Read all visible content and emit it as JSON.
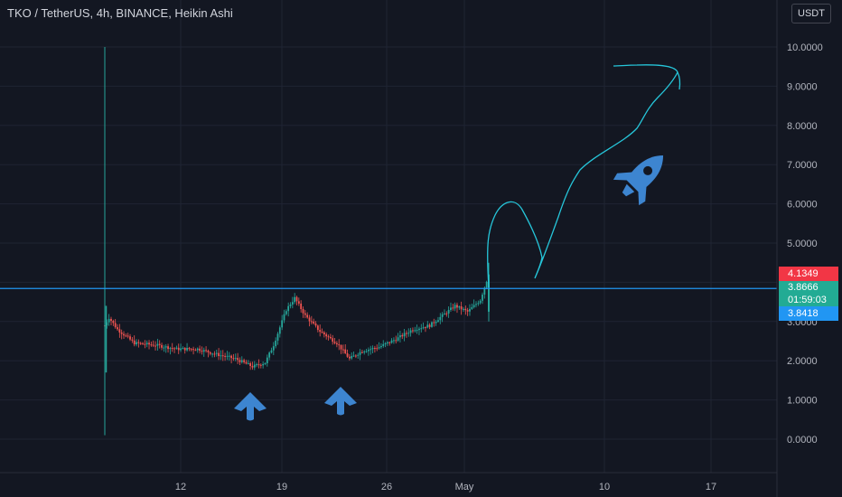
{
  "header": {
    "title": "TKO / TetherUS, 4h, BINANCE, Heikin Ashi",
    "currency": "USDT"
  },
  "price_labels": {
    "high": "4.1349",
    "last": "3.8666",
    "countdown": "01:59:03",
    "line": "3.8418"
  },
  "colors": {
    "background": "#131722",
    "up": "#26a69a",
    "down": "#ef5350",
    "hline": "#2196f3",
    "drawing": "#26c6da",
    "arrow": "#3d85d0",
    "rocket": "#3d85d0"
  },
  "annotations": [
    "up-arrow",
    "up-arrow",
    "rocket-icon",
    "projection-curve"
  ],
  "chart_data": {
    "type": "candlestick",
    "title": "TKO / TetherUS, 4h, BINANCE, Heikin Ashi",
    "ylim": [
      -0.5,
      11.5
    ],
    "ytick_values": [
      0,
      1,
      2,
      3,
      4,
      5,
      6,
      7,
      8,
      9,
      10
    ],
    "ytick_labels": [
      "0.0000",
      "1.0000",
      "2.0000",
      "3.0000",
      "4.0000",
      "5.0000",
      "6.0000",
      "7.0000",
      "8.0000",
      "9.0000",
      "10.0000"
    ],
    "xtick_labels": [
      "12",
      "19",
      "26",
      "May",
      "10",
      "17"
    ],
    "horizontal_line": 3.8418,
    "series_anchors": [
      [
        0,
        2.9
      ],
      [
        2,
        3.1
      ],
      [
        6,
        2.8
      ],
      [
        14,
        2.45
      ],
      [
        24,
        2.4
      ],
      [
        34,
        2.3
      ],
      [
        44,
        2.3
      ],
      [
        54,
        2.15
      ],
      [
        62,
        2.05
      ],
      [
        70,
        1.85
      ],
      [
        76,
        1.95
      ],
      [
        80,
        2.4
      ],
      [
        86,
        3.3
      ],
      [
        90,
        3.6
      ],
      [
        95,
        3.15
      ],
      [
        102,
        2.75
      ],
      [
        110,
        2.45
      ],
      [
        116,
        2.05
      ],
      [
        122,
        2.25
      ],
      [
        130,
        2.35
      ],
      [
        138,
        2.55
      ],
      [
        146,
        2.8
      ],
      [
        154,
        2.9
      ],
      [
        160,
        3.15
      ],
      [
        166,
        3.4
      ],
      [
        172,
        3.25
      ],
      [
        178,
        3.55
      ],
      [
        182,
        4.2
      ]
    ],
    "grid": true
  }
}
